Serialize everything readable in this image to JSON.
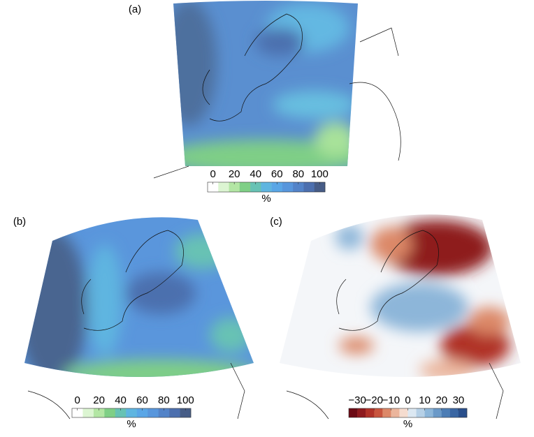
{
  "panels": [
    {
      "label": "(a)",
      "colorbar": {
        "lim": [
          -5,
          105
        ],
        "ticks": [
          0,
          20,
          40,
          60,
          80,
          100
        ],
        "unit": "%",
        "colors": [
          "#ffffff",
          "#dcf5d2",
          "#b3e6a4",
          "#7fcf86",
          "#67c2b4",
          "#5fb5e0",
          "#5aa6e6",
          "#5896dc",
          "#5383c8",
          "#4c6fae",
          "#465c86"
        ]
      }
    },
    {
      "label": "(b)",
      "colorbar": {
        "lim": [
          -5,
          105
        ],
        "ticks": [
          0,
          20,
          40,
          60,
          80,
          100
        ],
        "unit": "%",
        "colors": [
          "#ffffff",
          "#dcf5d2",
          "#b3e6a4",
          "#7fcf86",
          "#67c2b4",
          "#5fb5e0",
          "#5aa6e6",
          "#5896dc",
          "#5383c8",
          "#4c6fae",
          "#465c86"
        ]
      }
    },
    {
      "label": "(c)",
      "colorbar": {
        "lim": [
          -35,
          35
        ],
        "ticks": [
          {
            "value": -30,
            "label": "−30"
          },
          {
            "value": -20,
            "label": "−20"
          },
          {
            "value": -10,
            "label": "−10"
          },
          0,
          10,
          20,
          30
        ],
        "unit": "%",
        "colors": [
          "#6b0a14",
          "#8e1a1e",
          "#b03228",
          "#c8553e",
          "#dc8868",
          "#ebb59c",
          "#f5dccf",
          "#dce8f2",
          "#b6d0e6",
          "#8db6d9",
          "#6a99c8",
          "#4c7db5",
          "#3a66a3",
          "#2a4f8c"
        ]
      }
    }
  ]
}
